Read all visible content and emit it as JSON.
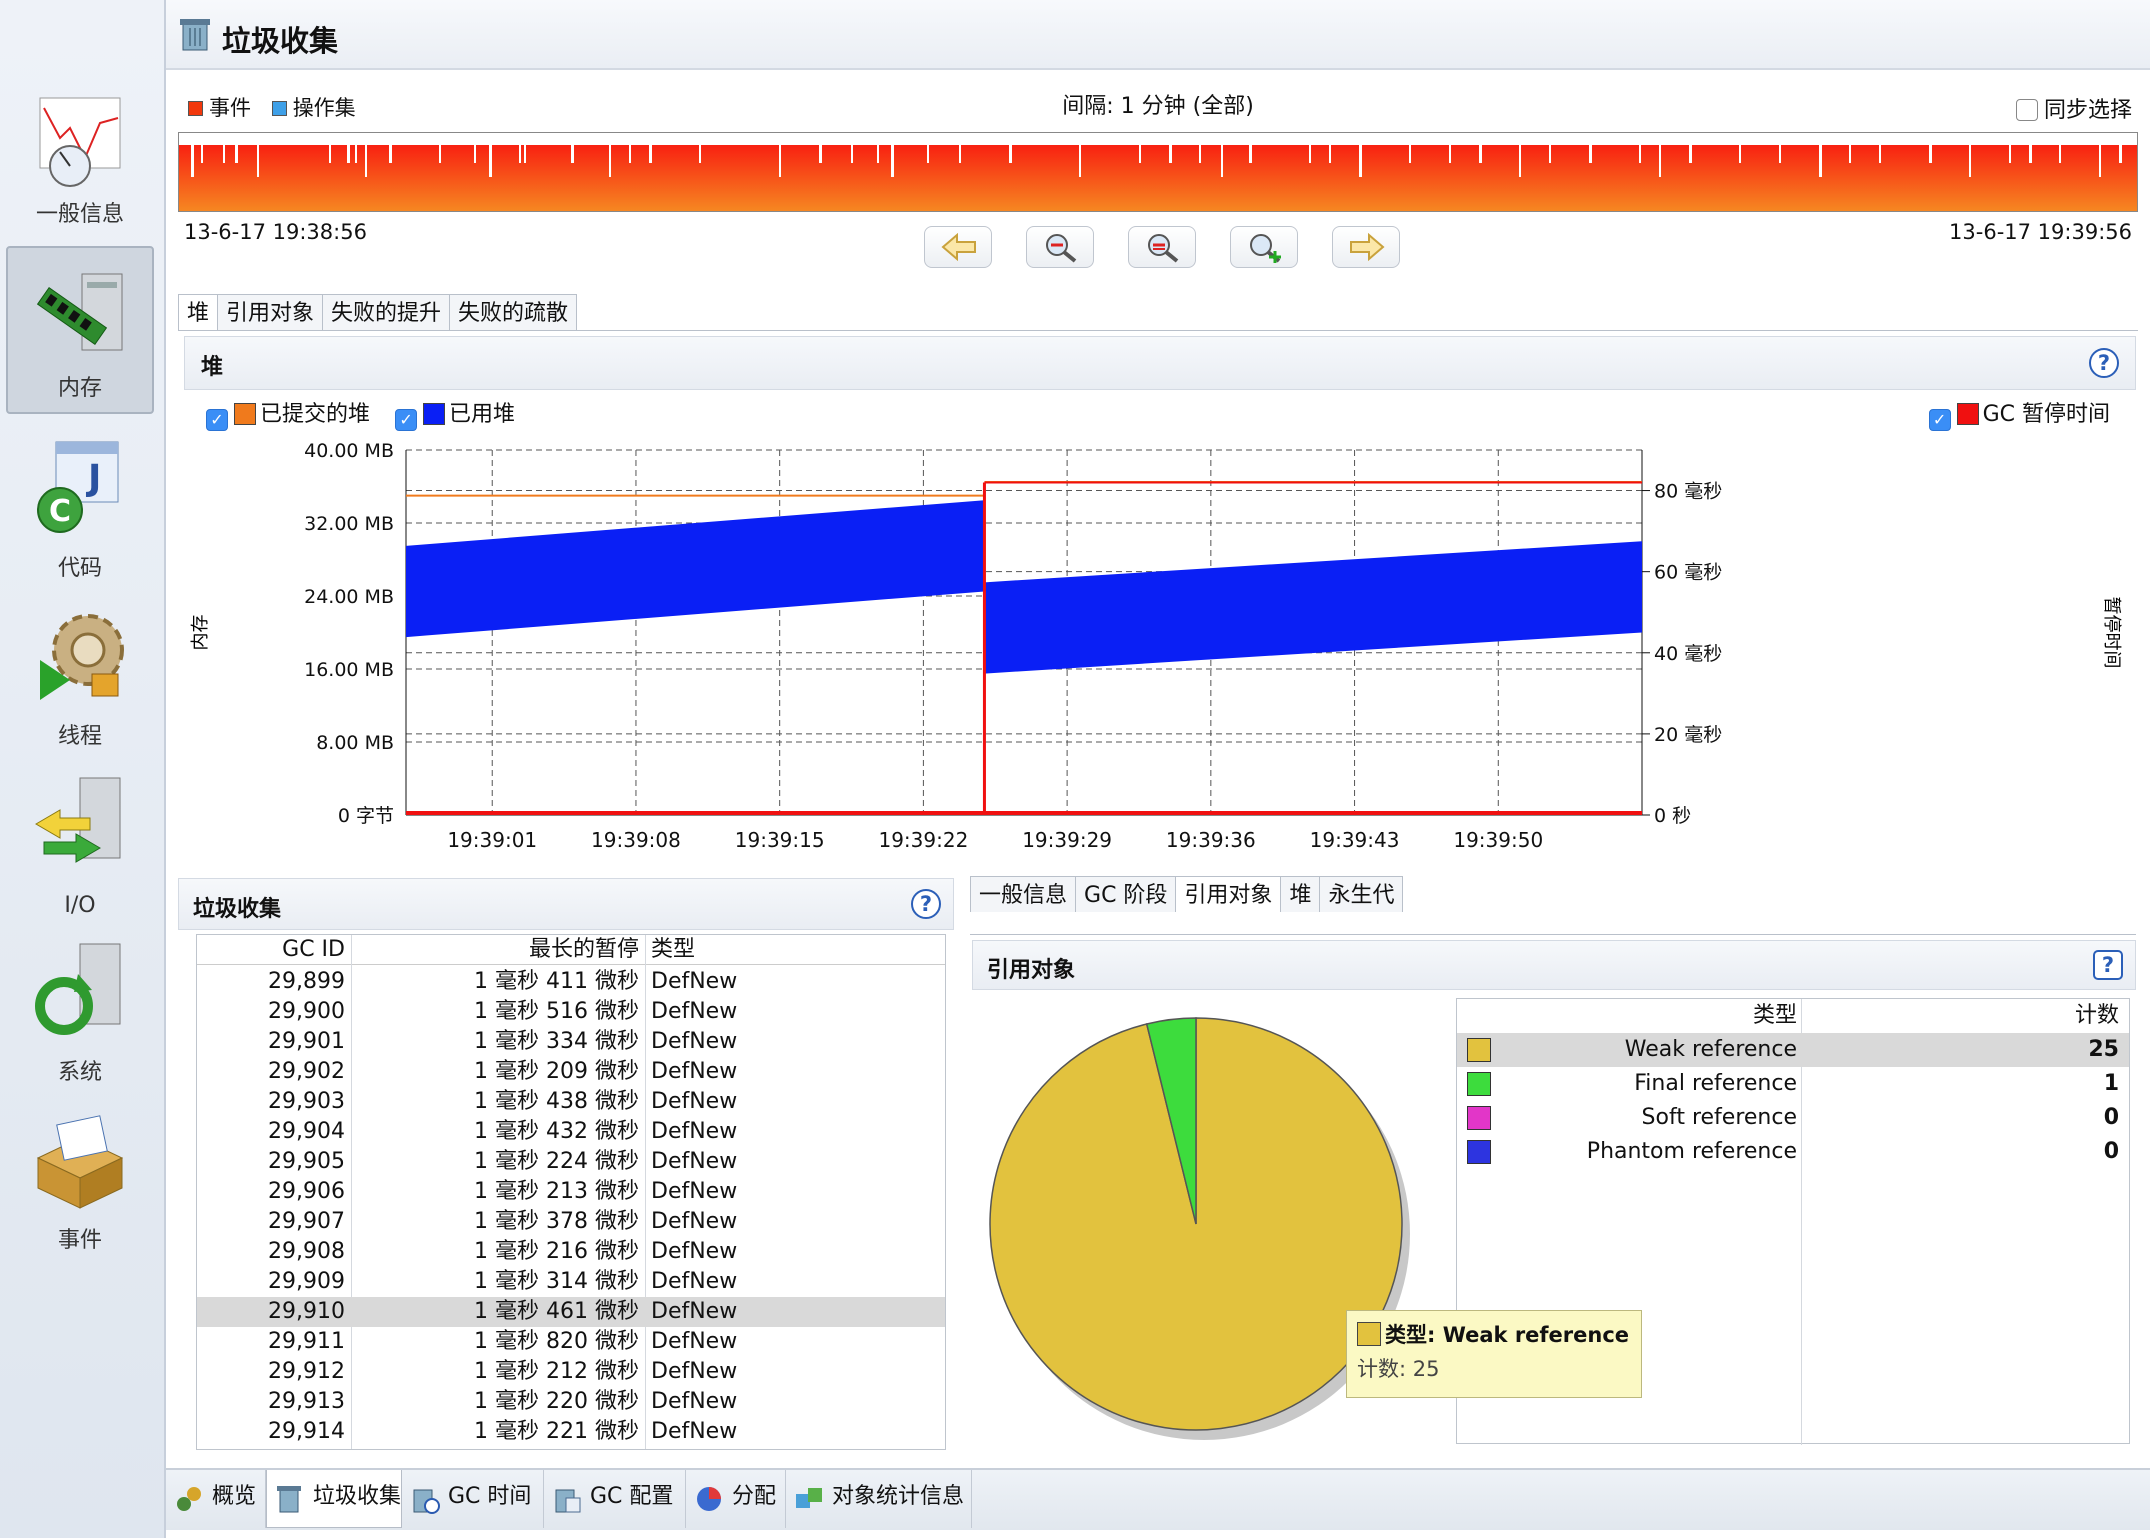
{
  "sidebar": {
    "items": [
      {
        "label": "一般信息",
        "icon": "chart-gauge-icon"
      },
      {
        "label": "内存",
        "icon": "memory-server-icon"
      },
      {
        "label": "代码",
        "icon": "code-class-icon"
      },
      {
        "label": "线程",
        "icon": "thread-gear-icon"
      },
      {
        "label": "I/O",
        "icon": "io-arrows-icon"
      },
      {
        "label": "系统",
        "icon": "system-refresh-icon"
      },
      {
        "label": "事件",
        "icon": "event-box-icon"
      }
    ],
    "selected": "内存"
  },
  "header": {
    "title": "垃圾收集"
  },
  "events": {
    "legend_events": "事件",
    "legend_operations": "操作集",
    "interval": "间隔: 1 分钟 (全部)",
    "sync_label": "同步选择",
    "start_time": "13-6-17 19:38:56",
    "end_time": "13-6-17 19:39:56"
  },
  "top_tabs": [
    "堆",
    "引用对象",
    "失败的提升",
    "失败的疏散"
  ],
  "heap_panel": {
    "title": "堆",
    "legend_committed": "已提交的堆",
    "legend_used": "已用堆",
    "legend_gc_pause": "GC 暂停时间",
    "y_axis_label": "内存",
    "y2_axis_label": "暂停时间"
  },
  "chart_data": {
    "type": "area",
    "x": [
      "19:39:01",
      "19:39:08",
      "19:39:15",
      "19:39:22",
      "19:39:29",
      "19:39:36",
      "19:39:43",
      "19:39:50"
    ],
    "y_ticks": [
      "0 字节",
      "8.00 MB",
      "16.00 MB",
      "24.00 MB",
      "32.00 MB",
      "40.00 MB"
    ],
    "y2_ticks": [
      "0 秒",
      "20 毫秒",
      "40 毫秒",
      "60 毫秒",
      "80 毫秒"
    ],
    "ylim": [
      0,
      40
    ],
    "y2lim": [
      0,
      90
    ],
    "gc_time": "19:39:24.5",
    "series": [
      {
        "name": "已提交的堆",
        "color": "#f07a1c",
        "before_gc_mb": 35,
        "after_gc_mb": 36.5
      },
      {
        "name": "已用堆",
        "color": "#0a1ff5",
        "band_start": [
          19.5,
          29.5
        ],
        "band_before_gc": [
          24.5,
          34.5
        ],
        "band_after_gc": [
          15.5,
          25.5
        ],
        "band_end": [
          20,
          30
        ]
      },
      {
        "name": "GC 暂停时间",
        "color": "#f01010",
        "spike_ms": 82
      }
    ],
    "grid": true
  },
  "gc_panel": {
    "title": "垃圾收集",
    "col_id": "GC ID",
    "col_pause": "最长的暂停",
    "col_type": "类型",
    "rows": [
      {
        "id": "29,899",
        "pause": "1 毫秒 411 微秒",
        "type": "DefNew"
      },
      {
        "id": "29,900",
        "pause": "1 毫秒 516 微秒",
        "type": "DefNew"
      },
      {
        "id": "29,901",
        "pause": "1 毫秒 334 微秒",
        "type": "DefNew"
      },
      {
        "id": "29,902",
        "pause": "1 毫秒 209 微秒",
        "type": "DefNew"
      },
      {
        "id": "29,903",
        "pause": "1 毫秒 438 微秒",
        "type": "DefNew"
      },
      {
        "id": "29,904",
        "pause": "1 毫秒 432 微秒",
        "type": "DefNew"
      },
      {
        "id": "29,905",
        "pause": "1 毫秒 224 微秒",
        "type": "DefNew"
      },
      {
        "id": "29,906",
        "pause": "1 毫秒 213 微秒",
        "type": "DefNew"
      },
      {
        "id": "29,907",
        "pause": "1 毫秒 378 微秒",
        "type": "DefNew"
      },
      {
        "id": "29,908",
        "pause": "1 毫秒 216 微秒",
        "type": "DefNew"
      },
      {
        "id": "29,909",
        "pause": "1 毫秒 314 微秒",
        "type": "DefNew"
      },
      {
        "id": "29,910",
        "pause": "1 毫秒 461 微秒",
        "type": "DefNew"
      },
      {
        "id": "29,911",
        "pause": "1 毫秒 820 微秒",
        "type": "DefNew"
      },
      {
        "id": "29,912",
        "pause": "1 毫秒 212 微秒",
        "type": "DefNew"
      },
      {
        "id": "29,913",
        "pause": "1 毫秒 220 微秒",
        "type": "DefNew"
      },
      {
        "id": "29,914",
        "pause": "1 毫秒 221 微秒",
        "type": "DefNew"
      }
    ],
    "selected_id": "29,910"
  },
  "detail_tabs": [
    "一般信息",
    "GC 阶段",
    "引用对象",
    "堆",
    "永生代"
  ],
  "detail_active_tab": "引用对象",
  "ref_panel": {
    "title": "引用对象",
    "col_type": "类型",
    "col_count": "计数",
    "rows": [
      {
        "name": "Weak reference",
        "count": "25",
        "color": "#e2c23e"
      },
      {
        "name": "Final reference",
        "count": "1",
        "color": "#3ddc3d"
      },
      {
        "name": "Soft reference",
        "count": "0",
        "color": "#e236c8"
      },
      {
        "name": "Phantom reference",
        "count": "0",
        "color": "#2d34e0"
      }
    ],
    "tooltip_type": "类型: Weak reference",
    "tooltip_count": "计数: 25"
  },
  "pie_data": {
    "type": "pie",
    "values": [
      25,
      1
    ],
    "labels": [
      "Weak reference",
      "Final reference"
    ]
  },
  "bottom_tabs": [
    "概览",
    "垃圾收集",
    "GC 时间",
    "GC 配置",
    "分配",
    "对象统计信息"
  ],
  "bottom_active": "垃圾收集"
}
